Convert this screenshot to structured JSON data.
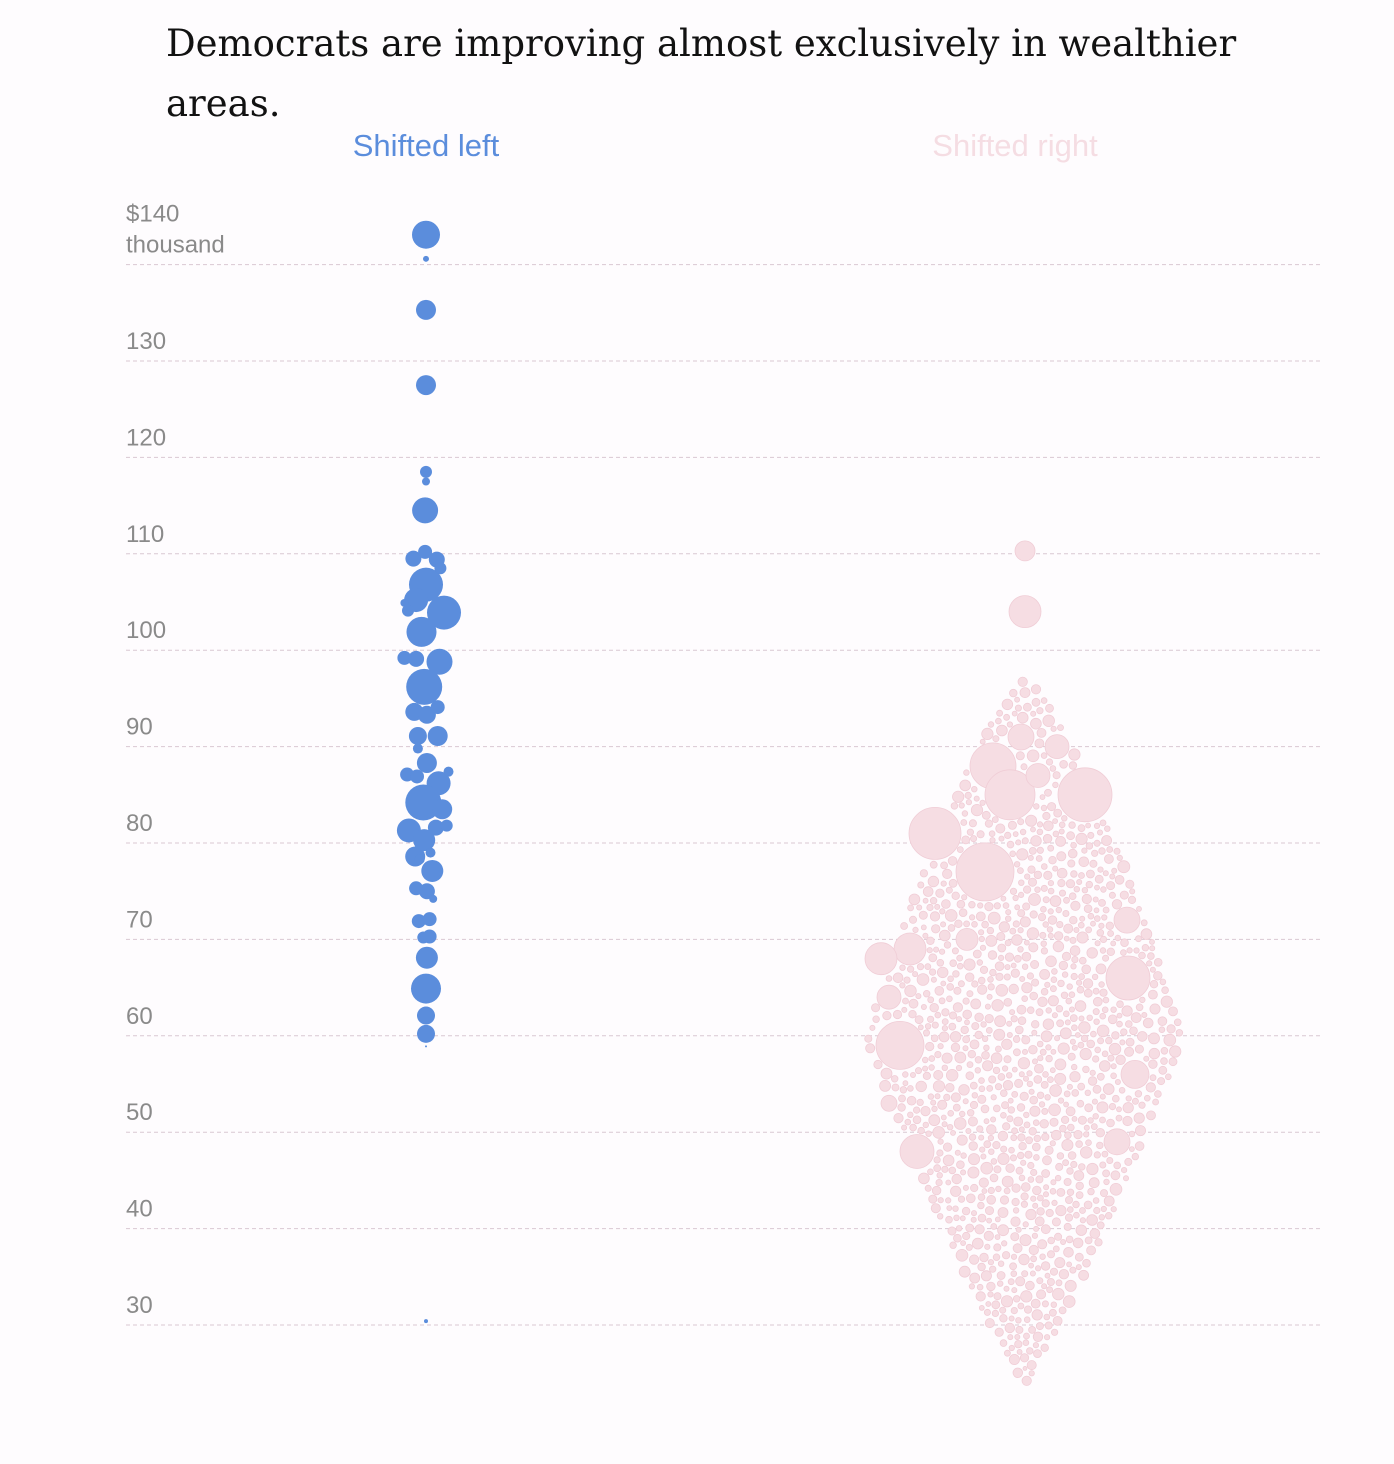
{
  "title": "Democrats are improving almost exclusively in wealthier areas.",
  "colors": {
    "left": "#5b8ddc",
    "right_fill": "#f6dde3",
    "right_stroke": "#f0cdd6",
    "grid": "#d9c8d2",
    "tick_text": "#8a8a8a"
  },
  "chart_data": {
    "type": "scatter",
    "subtype": "beeswarm",
    "title": "Democrats are improving almost exclusively in wealthier areas.",
    "ylabel": "",
    "y_unit_label": "thousand",
    "ylim": [
      27,
      145
    ],
    "yticks": [
      30,
      40,
      50,
      60,
      70,
      80,
      90,
      100,
      110,
      120,
      130,
      140
    ],
    "ytick_labels": [
      "30",
      "40",
      "50",
      "60",
      "70",
      "80",
      "90",
      "100",
      "110",
      "120",
      "130",
      "$140"
    ],
    "grid": true,
    "series": [
      {
        "name": "Shifted left",
        "x_group": "left",
        "points": [
          [
            0,
            143.1,
            14
          ],
          [
            0,
            140.6,
            3
          ],
          [
            0,
            135.3,
            10
          ],
          [
            0,
            127.5,
            10
          ],
          [
            0,
            118.5,
            6
          ],
          [
            0,
            117.5,
            4
          ],
          [
            -0.1,
            114.5,
            13
          ],
          [
            -1.4,
            109.5,
            8
          ],
          [
            -0.1,
            110.2,
            7
          ],
          [
            1.2,
            109.4,
            8
          ],
          [
            0,
            106.8,
            17
          ],
          [
            1.6,
            108.5,
            6
          ],
          [
            -1.1,
            105.2,
            12
          ],
          [
            2.0,
            103.9,
            17
          ],
          [
            -2.4,
            104.9,
            4
          ],
          [
            -2.0,
            104.1,
            6
          ],
          [
            -0.5,
            101.9,
            15
          ],
          [
            -2.4,
            99.2,
            7
          ],
          [
            -1.1,
            99.1,
            8
          ],
          [
            1.5,
            98.8,
            13
          ],
          [
            -0.2,
            96.2,
            18
          ],
          [
            -1.3,
            93.6,
            9
          ],
          [
            0.1,
            93.3,
            9
          ],
          [
            1.3,
            94.1,
            7
          ],
          [
            -0.9,
            91.1,
            9
          ],
          [
            1.3,
            91.1,
            10
          ],
          [
            -0.9,
            89.8,
            5
          ],
          [
            0.1,
            88.3,
            10
          ],
          [
            -2.1,
            87.1,
            7
          ],
          [
            -1.0,
            86.9,
            7
          ],
          [
            1.4,
            86.2,
            12
          ],
          [
            2.5,
            87.4,
            5
          ],
          [
            -0.3,
            84.2,
            18
          ],
          [
            1.8,
            83.5,
            10
          ],
          [
            1.1,
            81.6,
            8
          ],
          [
            -1.9,
            81.3,
            12
          ],
          [
            -0.2,
            80.3,
            11
          ],
          [
            2.3,
            81.8,
            6
          ],
          [
            -1.2,
            78.6,
            10
          ],
          [
            0.5,
            79.0,
            5
          ],
          [
            -0.7,
            78.3,
            5
          ],
          [
            0.7,
            77.1,
            11
          ],
          [
            -1.1,
            75.3,
            7
          ],
          [
            0.1,
            75.0,
            8
          ],
          [
            0.8,
            74.2,
            4
          ],
          [
            -0.8,
            71.9,
            7
          ],
          [
            0.4,
            72.1,
            7
          ],
          [
            -0.3,
            70.2,
            6
          ],
          [
            0.4,
            70.3,
            7
          ],
          [
            0.1,
            68.1,
            11
          ],
          [
            0,
            64.9,
            15
          ],
          [
            0,
            62.1,
            9
          ],
          [
            0,
            60.2,
            9
          ],
          [
            0,
            58.9,
            1
          ],
          [
            0,
            30.4,
            2
          ]
        ]
      },
      {
        "name": "Shifted right",
        "x_group": "right",
        "points": "dense swarm of ~2,000 circles spanning about $25–110 thousand, centered near $60 thousand"
      }
    ]
  }
}
